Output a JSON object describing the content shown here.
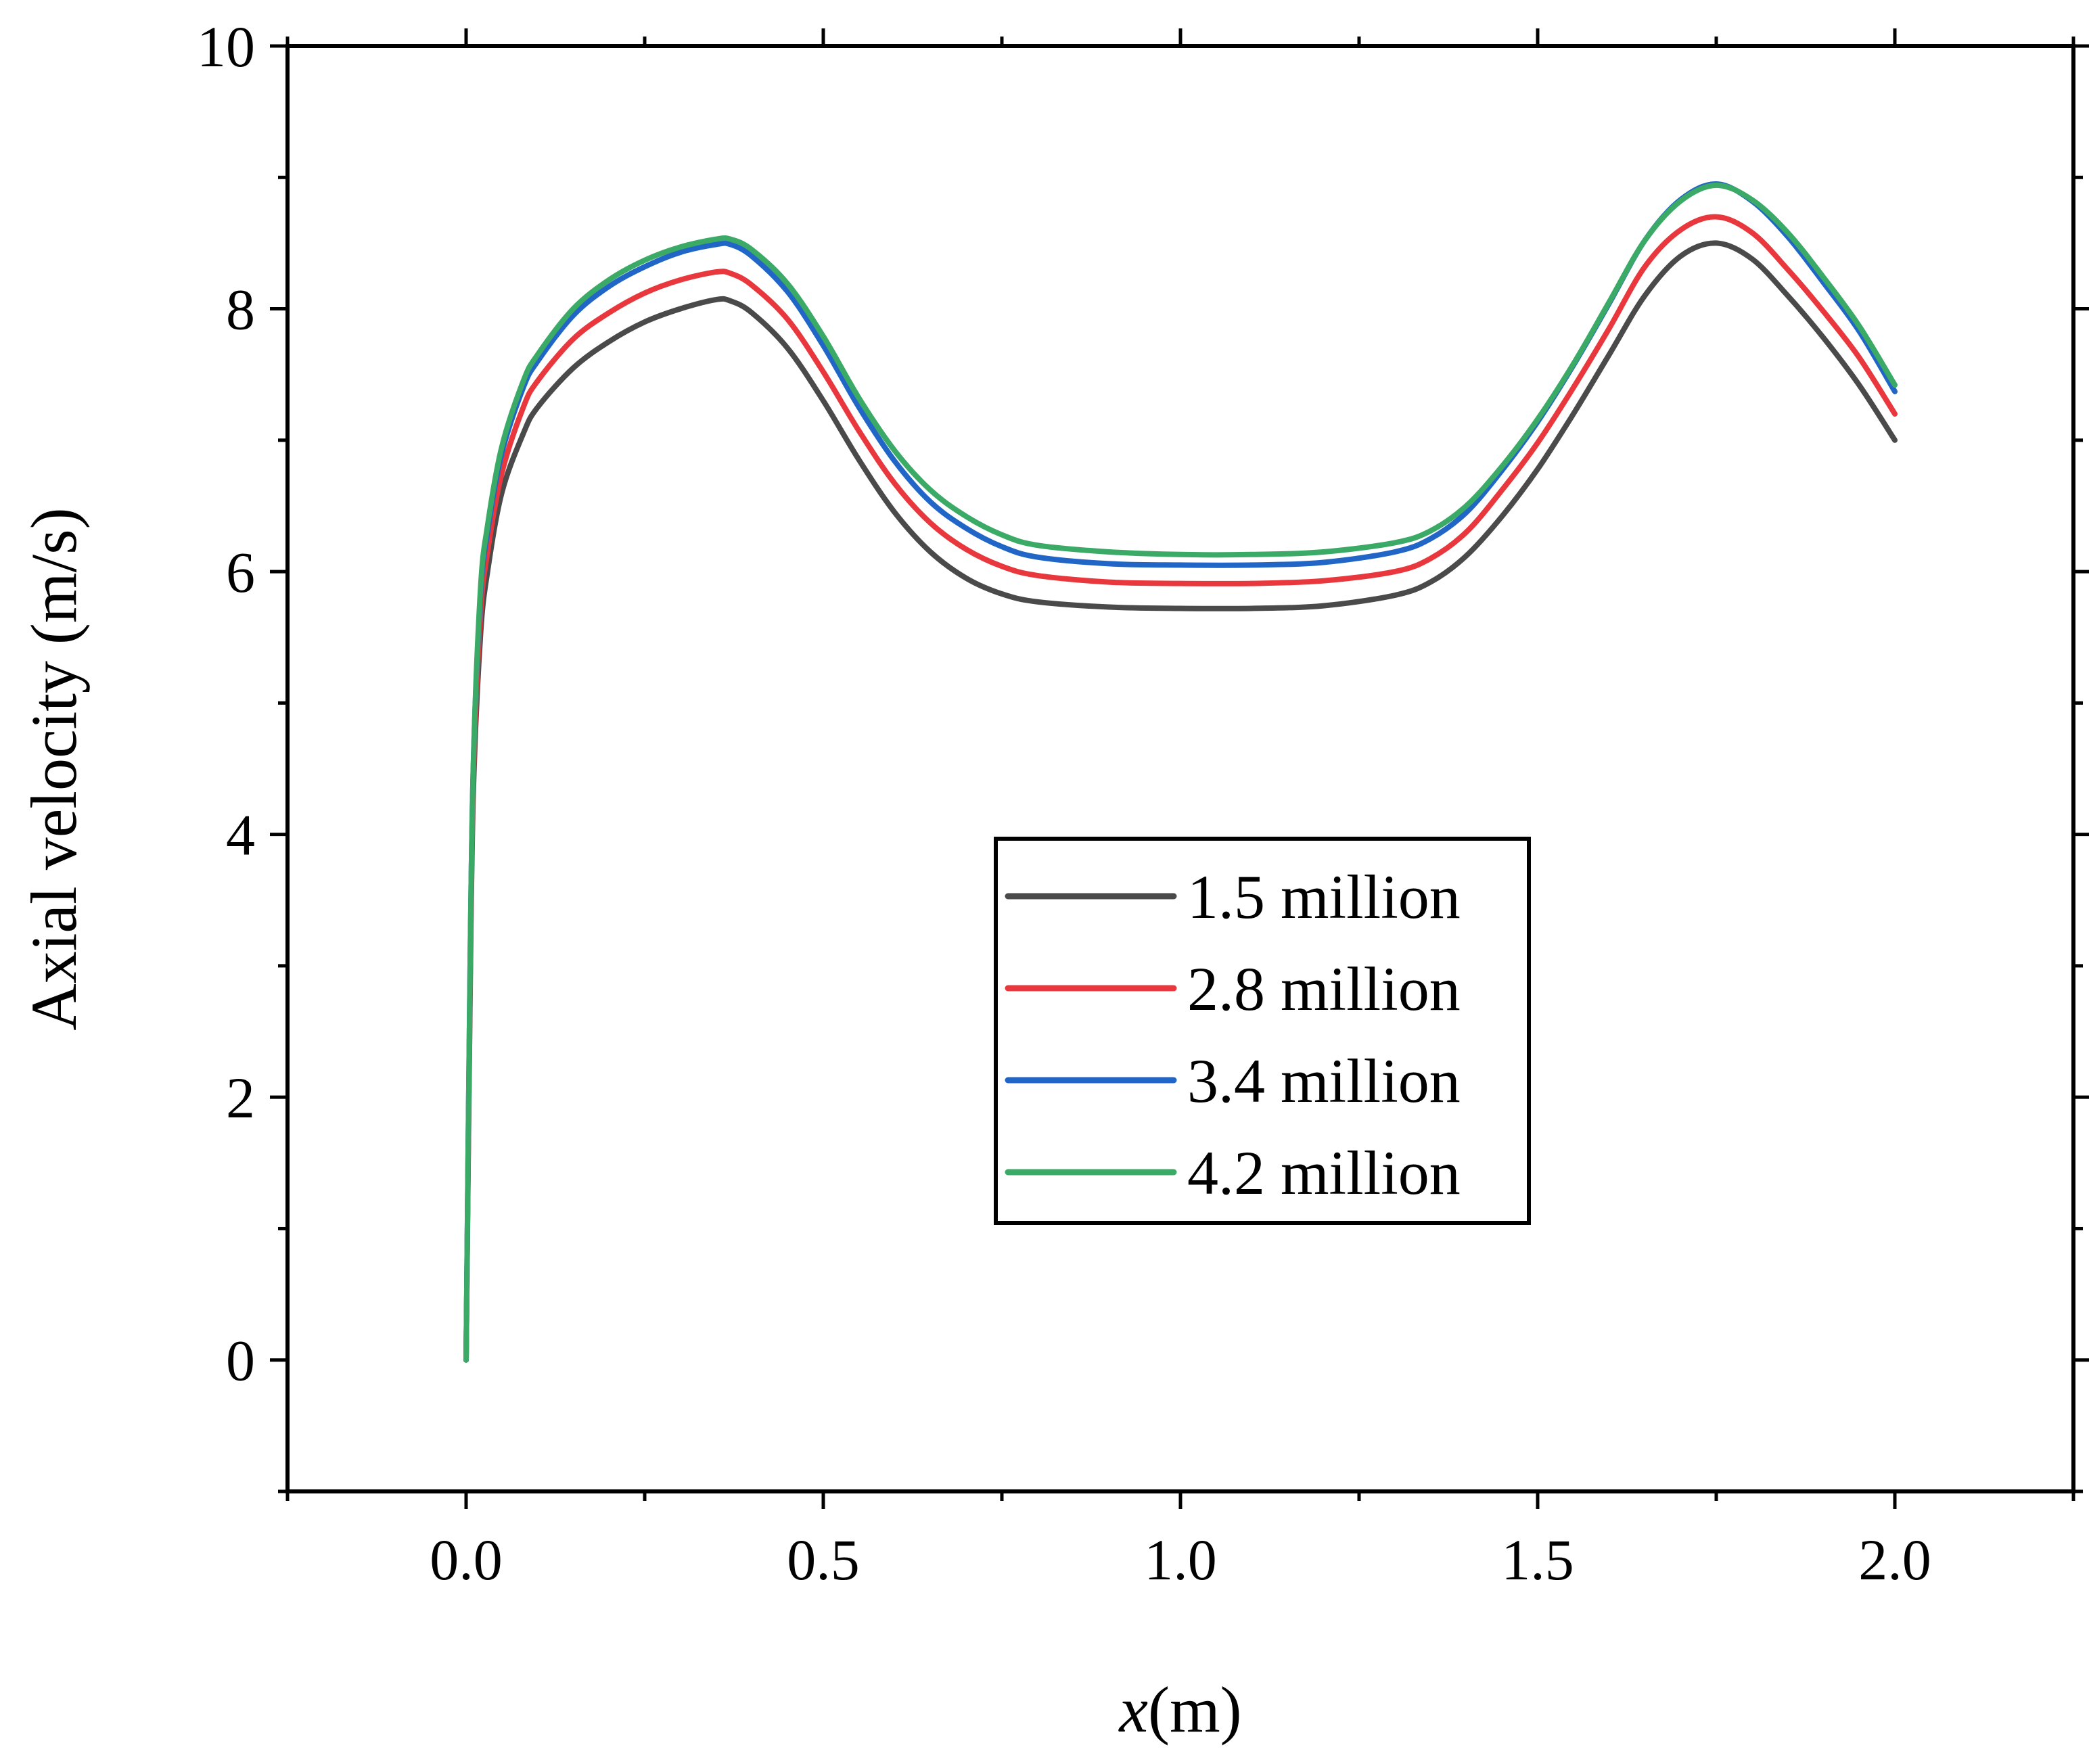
{
  "chart_data": {
    "type": "line",
    "title": "",
    "xlabel_var": "x",
    "xlabel_unit": "(m)",
    "ylabel": "Axial velocity (m/s)",
    "xlim": [
      -0.25,
      2.25
    ],
    "ylim": [
      -1,
      10
    ],
    "xticks": [
      0.0,
      0.5,
      1.0,
      1.5,
      2.0
    ],
    "xtick_labels": [
      "0.0",
      "0.5",
      "1.0",
      "1.5",
      "2.0"
    ],
    "yticks": [
      0,
      2,
      4,
      6,
      8,
      10
    ],
    "ytick_labels": [
      "0",
      "2",
      "4",
      "6",
      "8",
      "10"
    ],
    "grid": false,
    "legend_position": "center-right",
    "x": [
      0.0,
      0.005,
      0.01,
      0.02,
      0.03,
      0.05,
      0.08,
      0.1,
      0.15,
      0.2,
      0.25,
      0.3,
      0.35,
      0.37,
      0.4,
      0.45,
      0.5,
      0.55,
      0.6,
      0.65,
      0.7,
      0.75,
      0.8,
      0.9,
      1.0,
      1.1,
      1.2,
      1.3,
      1.35,
      1.4,
      1.45,
      1.5,
      1.55,
      1.6,
      1.65,
      1.7,
      1.75,
      1.8,
      1.85,
      1.9,
      1.95,
      2.0
    ],
    "series": [
      {
        "name": "1.5 million",
        "color": "#4a4a4a",
        "values": [
          0.0,
          2.5,
          4.3,
          5.5,
          6.0,
          6.6,
          7.05,
          7.25,
          7.55,
          7.75,
          7.9,
          8.0,
          8.07,
          8.06,
          7.97,
          7.7,
          7.3,
          6.85,
          6.45,
          6.15,
          5.95,
          5.83,
          5.77,
          5.73,
          5.72,
          5.72,
          5.74,
          5.82,
          5.92,
          6.12,
          6.42,
          6.78,
          7.2,
          7.65,
          8.1,
          8.4,
          8.5,
          8.38,
          8.1,
          7.78,
          7.42,
          7.0
        ]
      },
      {
        "name": "2.8 million",
        "color": "#e8383d",
        "values": [
          0.0,
          2.6,
          4.4,
          5.65,
          6.15,
          6.75,
          7.25,
          7.45,
          7.77,
          7.97,
          8.12,
          8.22,
          8.28,
          8.27,
          8.18,
          7.92,
          7.52,
          7.07,
          6.67,
          6.37,
          6.17,
          6.04,
          5.97,
          5.92,
          5.91,
          5.91,
          5.93,
          6.0,
          6.1,
          6.3,
          6.62,
          6.98,
          7.4,
          7.85,
          8.32,
          8.6,
          8.7,
          8.58,
          8.3,
          7.98,
          7.63,
          7.2
        ]
      },
      {
        "name": "3.4 million",
        "color": "#2166c6",
        "values": [
          0.0,
          2.7,
          4.5,
          5.8,
          6.3,
          6.9,
          7.4,
          7.6,
          7.95,
          8.17,
          8.32,
          8.43,
          8.49,
          8.49,
          8.4,
          8.13,
          7.72,
          7.25,
          6.84,
          6.53,
          6.33,
          6.19,
          6.11,
          6.06,
          6.05,
          6.05,
          6.07,
          6.15,
          6.25,
          6.45,
          6.77,
          7.14,
          7.57,
          8.04,
          8.52,
          8.83,
          8.95,
          8.82,
          8.55,
          8.2,
          7.83,
          7.37
        ]
      },
      {
        "name": "4.2 million",
        "color": "#3aaa66",
        "values": [
          0.0,
          2.7,
          4.5,
          5.85,
          6.35,
          6.95,
          7.45,
          7.65,
          8.0,
          8.22,
          8.37,
          8.47,
          8.53,
          8.53,
          8.45,
          8.19,
          7.79,
          7.32,
          6.92,
          6.62,
          6.42,
          6.28,
          6.2,
          6.15,
          6.13,
          6.13,
          6.15,
          6.22,
          6.31,
          6.5,
          6.8,
          7.16,
          7.58,
          8.05,
          8.52,
          8.82,
          8.94,
          8.83,
          8.58,
          8.24,
          7.87,
          7.42
        ]
      }
    ]
  }
}
